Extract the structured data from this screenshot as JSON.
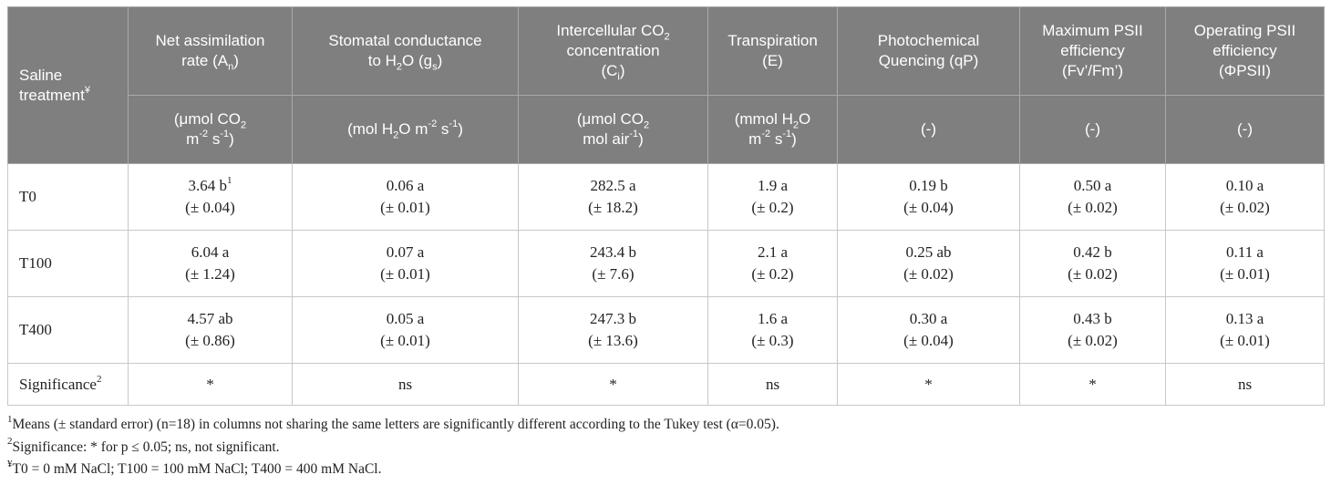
{
  "header": {
    "row_label_top": "Saline",
    "row_label_bottom": "treatment",
    "row_label_mark": "¥",
    "columns": [
      {
        "name_pre": "Net assimilation",
        "name_mid": "rate (A",
        "sub": "n",
        "name_post": ")",
        "unit_l1": "(μmol CO",
        "unit_l1_sub": "2",
        "unit_l2_a": "m",
        "unit_l2_sup1": "-2",
        "unit_l2_b": " s",
        "unit_l2_sup2": "-1",
        "unit_l2_c": ")"
      },
      {
        "name_pre": "Stomatal conductance",
        "name_mid": "to H",
        "sub1": "2",
        "name_mid2": "O (g",
        "sub": "s",
        "name_post": ")",
        "unit_a": "(mol H",
        "unit_sub": "2",
        "unit_b": "O m",
        "unit_sup1": "-2",
        "unit_c": " s",
        "unit_sup2": "-1",
        "unit_d": ")"
      },
      {
        "name_pre": "Intercellular CO",
        "name_pre_sub": "2",
        "name_mid": "concentration",
        "name_l3": "(C",
        "sub": "i",
        "name_post": ")",
        "unit_l1": "(μmol CO",
        "unit_l1_sub": "2",
        "unit_l2": "mol air",
        "unit_l2_sup": "-1",
        "unit_l2_c": ")"
      },
      {
        "name_pre": "Transpiration",
        "name_mid": "(E)",
        "unit_l1": "(mmol H",
        "unit_l1_sub": "2",
        "unit_l1_b": "O",
        "unit_l2_a": "m",
        "unit_l2_sup1": "-2",
        "unit_l2_b": " s",
        "unit_l2_sup2": "-1",
        "unit_l2_c": ")"
      },
      {
        "name_pre": "Photochemical",
        "name_mid": "Quencing (qP)",
        "unit": "(-)"
      },
      {
        "name_pre": "Maximum PSII",
        "name_mid": "efficiency",
        "name_l3": "(Fv’/Fm’)",
        "unit": "(-)"
      },
      {
        "name_pre": "Operating PSII",
        "name_mid": "efficiency",
        "name_l3": "(ΦPSII)",
        "unit": "(-)"
      }
    ]
  },
  "rows": [
    {
      "label": "T0",
      "first_mark": "1",
      "cells": [
        {
          "value": "3.64 b",
          "se": "(± 0.04)"
        },
        {
          "value": "0.06 a",
          "se": "(± 0.01)"
        },
        {
          "value": "282.5 a",
          "se": "(± 18.2)"
        },
        {
          "value": "1.9 a",
          "se": "(± 0.2)"
        },
        {
          "value": "0.19 b",
          "se": "(± 0.04)"
        },
        {
          "value": "0.50 a",
          "se": "(± 0.02)"
        },
        {
          "value": "0.10 a",
          "se": "(± 0.02)"
        }
      ]
    },
    {
      "label": "T100",
      "cells": [
        {
          "value": "6.04 a",
          "se": "(± 1.24)"
        },
        {
          "value": "0.07 a",
          "se": "(± 0.01)"
        },
        {
          "value": "243.4 b",
          "se": "(± 7.6)"
        },
        {
          "value": "2.1 a",
          "se": "(± 0.2)"
        },
        {
          "value": "0.25 ab",
          "se": "(± 0.02)"
        },
        {
          "value": "0.42 b",
          "se": "(± 0.02)"
        },
        {
          "value": "0.11 a",
          "se": "(± 0.01)"
        }
      ]
    },
    {
      "label": "T400",
      "cells": [
        {
          "value": "4.57 ab",
          "se": "(± 0.86)"
        },
        {
          "value": "0.05 a",
          "se": "(± 0.01)"
        },
        {
          "value": "247.3 b",
          "se": "(± 13.6)"
        },
        {
          "value": "1.6 a",
          "se": "(± 0.3)"
        },
        {
          "value": "0.30 a",
          "se": "(± 0.04)"
        },
        {
          "value": "0.43 b",
          "se": "(± 0.02)"
        },
        {
          "value": "0.13 a",
          "se": "(± 0.01)"
        }
      ]
    }
  ],
  "significance": {
    "label": "Significance",
    "mark": "2",
    "values": [
      "*",
      "ns",
      "*",
      "ns",
      "*",
      "*",
      "ns"
    ]
  },
  "footnotes": [
    {
      "mark": "1",
      "text": "Means (± standard error) (n=18) in columns not sharing the same letters are significantly different according to the Tukey test (α=0.05)."
    },
    {
      "mark": "2",
      "text": "Significance: * for p ≤ 0.05; ns, not significant."
    },
    {
      "mark": "¥",
      "text": "T0 = 0 mM NaCl; T100 = 100 mM NaCl; T400 = 400 mM NaCl."
    }
  ]
}
